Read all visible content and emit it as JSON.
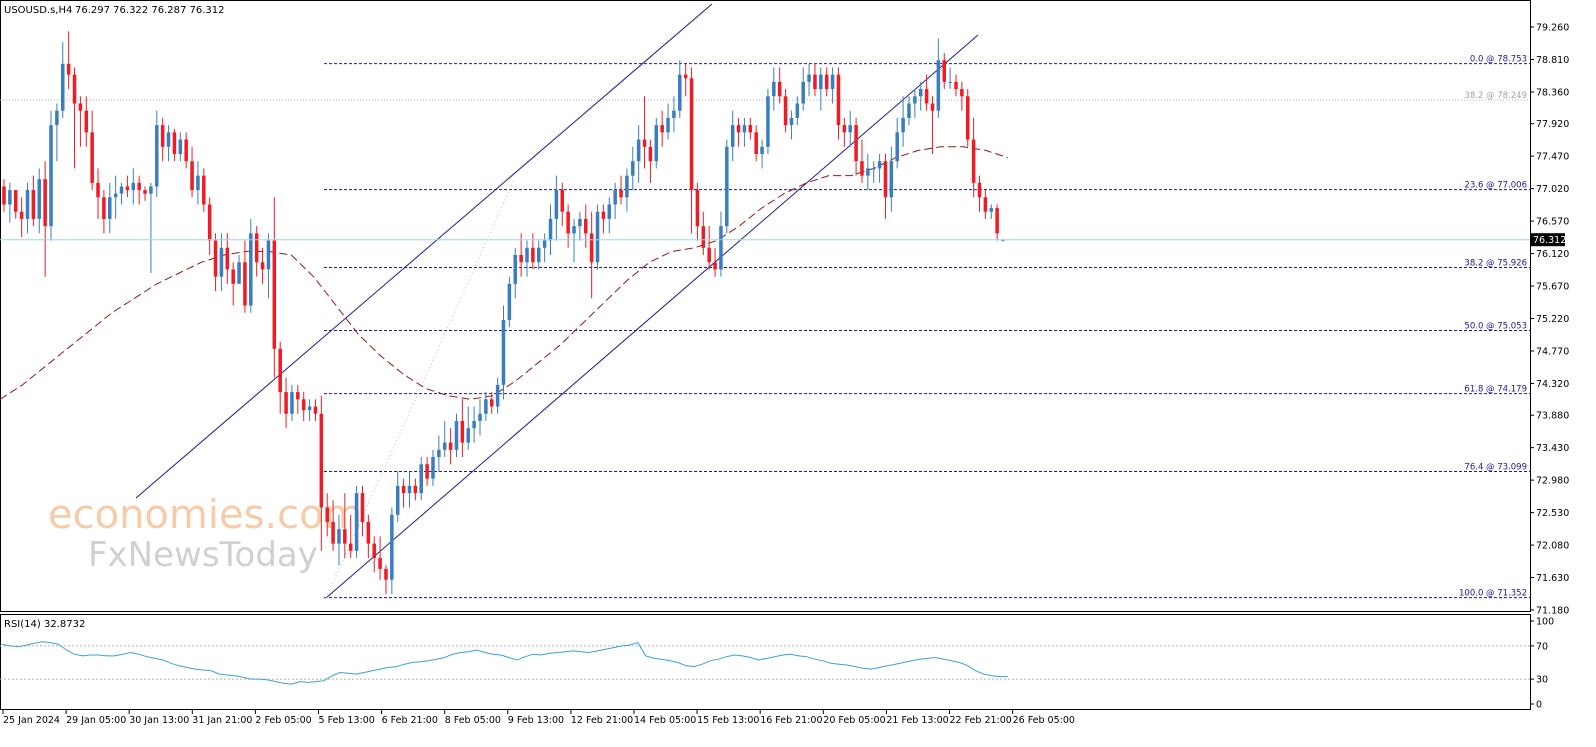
{
  "header": {
    "symbol": "USOUSD.s,H4",
    "ohlc": "76.297 76.322 76.287 76.312"
  },
  "price_axis": {
    "ticks": [
      "79.260",
      "78.810",
      "78.360",
      "77.920",
      "77.470",
      "77.020",
      "76.570",
      "76.120",
      "75.670",
      "75.220",
      "74.770",
      "74.320",
      "73.880",
      "73.430",
      "72.980",
      "72.530",
      "72.080",
      "71.630",
      "71.180"
    ],
    "current_price": "76.312"
  },
  "fib_levels": [
    {
      "label": "0.0 @ 78.753",
      "value": 78.753
    },
    {
      "label": "38.2 @ 78.249",
      "value": 78.249
    },
    {
      "label": "23.6 @ 77.006",
      "value": 77.006
    },
    {
      "label": "38.2 @ 75.926",
      "value": 75.926
    },
    {
      "label": "50.0 @ 75.053",
      "value": 75.053
    },
    {
      "label": "61.8 @ 74.179",
      "value": 74.179
    },
    {
      "label": "76.4 @ 73.099",
      "value": 73.099
    },
    {
      "label": "100.0 @ 71.352",
      "value": 71.352
    }
  ],
  "time_axis": [
    "25 Jan 2024",
    "29 Jan 05:00",
    "30 Jan 13:00",
    "31 Jan 21:00",
    "2 Feb 05:00",
    "5 Feb 13:00",
    "6 Feb 21:00",
    "8 Feb 05:00",
    "9 Feb 13:00",
    "12 Feb 21:00",
    "14 Feb 05:00",
    "15 Feb 13:00",
    "16 Feb 21:00",
    "20 Feb 05:00",
    "21 Feb 13:00",
    "22 Feb 21:00",
    "26 Feb 05:00"
  ],
  "rsi": {
    "label": "RSI(14) 32.8732",
    "ticks": [
      "100",
      "70",
      "30",
      "0"
    ],
    "levels": [
      70,
      30
    ]
  },
  "watermark": {
    "line1": "economies.com",
    "line2": "FxNewsToday"
  },
  "colors": {
    "bull": "#3b7ec0",
    "bear": "#ee1c24",
    "channel": "#1a1a8c",
    "ma": "#8b1a1a",
    "fib": "#1a1a8c",
    "rsi": "#3aa0e0"
  },
  "chart_data": {
    "type": "candlestick",
    "title": "USOUSD.s,H4",
    "ylim": [
      71.18,
      79.26
    ],
    "x_range": [
      "25 Jan 2024",
      "26 Feb 05:00"
    ],
    "candles_ohlc": [
      [
        77.05,
        77.15,
        76.7,
        76.8
      ],
      [
        76.8,
        77.1,
        76.55,
        77.0
      ],
      [
        77.0,
        77.0,
        76.6,
        76.7
      ],
      [
        76.7,
        76.9,
        76.35,
        76.6
      ],
      [
        76.6,
        77.1,
        76.4,
        77.0
      ],
      [
        77.0,
        77.2,
        76.5,
        76.6
      ],
      [
        76.6,
        77.3,
        76.4,
        77.15
      ],
      [
        77.15,
        77.4,
        75.8,
        76.5
      ],
      [
        76.5,
        78.1,
        76.3,
        77.9
      ],
      [
        77.9,
        78.2,
        77.4,
        78.1
      ],
      [
        78.1,
        79.05,
        78.0,
        78.75
      ],
      [
        78.75,
        79.2,
        78.4,
        78.6
      ],
      [
        78.6,
        78.7,
        77.3,
        78.2
      ],
      [
        78.2,
        78.3,
        77.6,
        78.1
      ],
      [
        78.1,
        78.3,
        77.6,
        77.8
      ],
      [
        77.8,
        78.1,
        77.0,
        77.1
      ],
      [
        77.1,
        77.3,
        76.6,
        76.9
      ],
      [
        76.9,
        77.0,
        76.4,
        76.6
      ],
      [
        76.6,
        77.1,
        76.4,
        76.9
      ],
      [
        76.9,
        77.2,
        76.6,
        76.95
      ],
      [
        76.95,
        77.1,
        76.8,
        77.05
      ],
      [
        77.05,
        77.2,
        76.9,
        77.0
      ],
      [
        77.0,
        77.3,
        76.8,
        77.1
      ],
      [
        77.1,
        77.2,
        76.8,
        77.0
      ],
      [
        77.0,
        77.05,
        76.85,
        76.95
      ],
      [
        76.95,
        77.1,
        75.85,
        77.05
      ],
      [
        77.05,
        78.1,
        76.9,
        77.9
      ],
      [
        77.9,
        78.0,
        77.4,
        77.6
      ],
      [
        77.6,
        77.9,
        77.4,
        77.8
      ],
      [
        77.8,
        77.85,
        77.4,
        77.5
      ],
      [
        77.5,
        77.8,
        77.4,
        77.7
      ],
      [
        77.7,
        77.8,
        77.3,
        77.4
      ],
      [
        77.4,
        77.6,
        76.9,
        77.0
      ],
      [
        77.0,
        77.4,
        76.8,
        77.2
      ],
      [
        77.2,
        77.3,
        76.7,
        76.8
      ],
      [
        76.8,
        76.9,
        76.1,
        76.3
      ],
      [
        76.3,
        76.4,
        75.6,
        75.8
      ],
      [
        75.8,
        76.4,
        75.6,
        76.2
      ],
      [
        76.2,
        76.4,
        75.7,
        75.9
      ],
      [
        75.9,
        76.0,
        75.4,
        75.7
      ],
      [
        75.7,
        76.1,
        75.7,
        76.0
      ],
      [
        76.0,
        76.3,
        75.3,
        75.4
      ],
      [
        75.4,
        76.6,
        75.3,
        76.4
      ],
      [
        76.4,
        76.5,
        75.8,
        76.0
      ],
      [
        76.0,
        76.2,
        75.7,
        75.9
      ],
      [
        75.9,
        76.4,
        75.5,
        76.3
      ],
      [
        76.3,
        76.9,
        74.4,
        74.8
      ],
      [
        74.8,
        74.9,
        73.9,
        74.2
      ],
      [
        74.2,
        74.4,
        73.7,
        73.9
      ],
      [
        73.9,
        74.3,
        73.8,
        74.2
      ],
      [
        74.2,
        74.3,
        73.9,
        74.1
      ],
      [
        74.1,
        74.2,
        73.8,
        73.95
      ],
      [
        73.95,
        74.1,
        73.8,
        74.0
      ],
      [
        74.0,
        74.1,
        73.8,
        73.9
      ],
      [
        73.9,
        74.15,
        72.0,
        72.6
      ],
      [
        72.6,
        72.8,
        72.2,
        72.4
      ],
      [
        72.4,
        72.7,
        72.0,
        72.1
      ],
      [
        72.1,
        72.5,
        71.8,
        72.3
      ],
      [
        72.3,
        72.8,
        71.9,
        72.1
      ],
      [
        72.1,
        72.5,
        71.9,
        72.0
      ],
      [
        72.0,
        72.9,
        71.9,
        72.8
      ],
      [
        72.8,
        72.9,
        72.2,
        72.4
      ],
      [
        72.4,
        72.5,
        71.9,
        72.1
      ],
      [
        72.1,
        72.2,
        71.7,
        71.9
      ],
      [
        71.9,
        72.2,
        71.6,
        71.75
      ],
      [
        71.75,
        71.8,
        71.4,
        71.6
      ],
      [
        71.6,
        72.6,
        71.4,
        72.5
      ],
      [
        72.5,
        73.1,
        72.4,
        72.9
      ],
      [
        72.9,
        73.0,
        72.6,
        72.8
      ],
      [
        72.8,
        73.1,
        72.6,
        72.9
      ],
      [
        72.9,
        73.0,
        72.7,
        72.8
      ],
      [
        72.8,
        73.3,
        72.7,
        73.2
      ],
      [
        73.2,
        73.3,
        72.9,
        73.0
      ],
      [
        73.0,
        73.4,
        72.9,
        73.3
      ],
      [
        73.3,
        73.6,
        73.1,
        73.4
      ],
      [
        73.4,
        73.8,
        73.3,
        73.5
      ],
      [
        73.5,
        73.7,
        73.2,
        73.4
      ],
      [
        73.4,
        73.9,
        73.3,
        73.8
      ],
      [
        73.8,
        74.1,
        73.3,
        73.5
      ],
      [
        73.5,
        74.0,
        73.4,
        73.7
      ],
      [
        73.7,
        74.0,
        73.5,
        73.8
      ],
      [
        73.8,
        74.1,
        73.6,
        73.9
      ],
      [
        73.9,
        74.2,
        73.8,
        74.1
      ],
      [
        74.1,
        74.2,
        73.9,
        74.0
      ],
      [
        74.0,
        74.4,
        73.9,
        74.3
      ],
      [
        74.3,
        75.4,
        74.1,
        75.2
      ],
      [
        75.2,
        75.8,
        75.1,
        75.7
      ],
      [
        75.7,
        76.2,
        75.5,
        76.1
      ],
      [
        76.1,
        76.4,
        75.8,
        76.0
      ],
      [
        76.0,
        76.3,
        75.8,
        76.2
      ],
      [
        76.2,
        76.4,
        75.9,
        76.0
      ],
      [
        76.0,
        76.3,
        75.9,
        76.2
      ],
      [
        76.2,
        76.4,
        76.0,
        76.3
      ],
      [
        76.3,
        76.8,
        76.1,
        76.6
      ],
      [
        76.6,
        77.2,
        76.3,
        77.0
      ],
      [
        77.0,
        77.1,
        76.5,
        76.7
      ],
      [
        76.7,
        76.8,
        76.2,
        76.4
      ],
      [
        76.4,
        76.6,
        76.0,
        76.5
      ],
      [
        76.5,
        76.7,
        76.3,
        76.6
      ],
      [
        76.6,
        76.8,
        76.2,
        76.4
      ],
      [
        76.4,
        76.7,
        75.5,
        76.0
      ],
      [
        76.0,
        76.8,
        75.9,
        76.7
      ],
      [
        76.7,
        76.8,
        76.4,
        76.6
      ],
      [
        76.6,
        76.9,
        76.4,
        76.8
      ],
      [
        76.8,
        77.1,
        76.6,
        77.0
      ],
      [
        77.0,
        77.2,
        76.8,
        76.9
      ],
      [
        76.9,
        77.3,
        76.7,
        77.2
      ],
      [
        77.2,
        77.6,
        77.0,
        77.4
      ],
      [
        77.4,
        77.9,
        77.1,
        77.7
      ],
      [
        77.7,
        78.3,
        77.3,
        77.6
      ],
      [
        77.6,
        77.7,
        77.1,
        77.4
      ],
      [
        77.4,
        78.0,
        77.3,
        77.9
      ],
      [
        77.9,
        78.1,
        77.6,
        77.8
      ],
      [
        77.8,
        78.2,
        77.7,
        78.0
      ],
      [
        78.0,
        78.3,
        77.8,
        78.1
      ],
      [
        78.1,
        78.8,
        78.0,
        78.6
      ],
      [
        78.6,
        78.75,
        78.3,
        78.55
      ],
      [
        78.55,
        78.7,
        76.4,
        77.0
      ],
      [
        77.0,
        77.1,
        76.3,
        76.5
      ],
      [
        76.5,
        76.7,
        76.1,
        76.2
      ],
      [
        76.2,
        76.5,
        75.9,
        76.0
      ],
      [
        76.0,
        76.2,
        75.8,
        75.9
      ],
      [
        75.9,
        76.7,
        75.8,
        76.5
      ],
      [
        76.5,
        77.7,
        76.4,
        77.6
      ],
      [
        77.6,
        78.1,
        77.4,
        77.9
      ],
      [
        77.9,
        78.0,
        77.6,
        77.8
      ],
      [
        77.8,
        78.0,
        77.6,
        77.9
      ],
      [
        77.9,
        78.0,
        77.7,
        77.8
      ],
      [
        77.8,
        77.9,
        77.4,
        77.5
      ],
      [
        77.5,
        77.7,
        77.3,
        77.6
      ],
      [
        77.6,
        78.4,
        77.5,
        78.3
      ],
      [
        78.3,
        78.7,
        78.1,
        78.5
      ],
      [
        78.5,
        78.7,
        78.2,
        78.3
      ],
      [
        78.3,
        78.4,
        77.8,
        77.9
      ],
      [
        77.9,
        78.1,
        77.7,
        78.0
      ],
      [
        78.0,
        78.3,
        77.9,
        78.2
      ],
      [
        78.2,
        78.7,
        78.1,
        78.5
      ],
      [
        78.5,
        78.75,
        78.3,
        78.6
      ],
      [
        78.6,
        78.75,
        78.3,
        78.4
      ],
      [
        78.4,
        78.7,
        78.1,
        78.6
      ],
      [
        78.6,
        78.7,
        78.3,
        78.4
      ],
      [
        78.4,
        78.7,
        78.2,
        78.6
      ],
      [
        78.6,
        78.7,
        77.7,
        77.9
      ],
      [
        77.9,
        78.0,
        77.6,
        77.8
      ],
      [
        77.8,
        78.1,
        77.6,
        77.9
      ],
      [
        77.9,
        78.0,
        77.2,
        77.4
      ],
      [
        77.4,
        77.7,
        77.1,
        77.2
      ],
      [
        77.2,
        77.5,
        77.0,
        77.3
      ],
      [
        77.3,
        77.4,
        77.1,
        77.3
      ],
      [
        77.3,
        77.5,
        77.1,
        77.4
      ],
      [
        77.4,
        77.5,
        76.6,
        76.9
      ],
      [
        76.9,
        77.6,
        76.7,
        77.4
      ],
      [
        77.4,
        78.0,
        77.3,
        77.8
      ],
      [
        77.8,
        78.3,
        77.6,
        78.0
      ],
      [
        78.0,
        78.3,
        77.9,
        78.2
      ],
      [
        78.2,
        78.4,
        78.0,
        78.3
      ],
      [
        78.3,
        78.5,
        78.1,
        78.4
      ],
      [
        78.4,
        78.6,
        78.1,
        78.2
      ],
      [
        78.2,
        78.3,
        77.5,
        78.1
      ],
      [
        78.1,
        79.1,
        78.0,
        78.8
      ],
      [
        78.8,
        78.9,
        78.4,
        78.5
      ],
      [
        78.5,
        78.7,
        78.4,
        78.5
      ],
      [
        78.5,
        78.6,
        78.3,
        78.4
      ],
      [
        78.4,
        78.5,
        78.1,
        78.3
      ],
      [
        78.3,
        78.4,
        77.6,
        77.7
      ],
      [
        77.7,
        78.0,
        76.9,
        77.1
      ],
      [
        77.1,
        77.2,
        76.7,
        76.9
      ],
      [
        76.9,
        77.0,
        76.6,
        76.7
      ],
      [
        76.7,
        76.8,
        76.6,
        76.75
      ],
      [
        76.75,
        76.8,
        76.3,
        76.4
      ],
      [
        76.297,
        76.322,
        76.287,
        76.312
      ]
    ],
    "moving_average": [
      74.1,
      74.3,
      74.55,
      74.8,
      75.05,
      75.3,
      75.5,
      75.7,
      75.85,
      76.0,
      76.1,
      76.15,
      76.15,
      76.1,
      75.8,
      75.4,
      75.0,
      74.7,
      74.45,
      74.25,
      74.15,
      74.1,
      74.15,
      74.35,
      74.6,
      74.85,
      75.15,
      75.45,
      75.75,
      76.0,
      76.15,
      76.2,
      76.3,
      76.5,
      76.75,
      76.95,
      77.1,
      77.2,
      77.2,
      77.3,
      77.45,
      77.55,
      77.6,
      77.6,
      77.55,
      77.45
    ],
    "fibonacci": [
      {
        "ratio": "0.0",
        "price": 78.753
      },
      {
        "ratio": "23.6",
        "price": 77.006
      },
      {
        "ratio": "38.2",
        "price": 75.926
      },
      {
        "ratio": "50.0",
        "price": 75.053
      },
      {
        "ratio": "61.8",
        "price": 74.179
      },
      {
        "ratio": "76.4",
        "price": 73.099
      },
      {
        "ratio": "100.0",
        "price": 71.352
      },
      {
        "ratio": "38.2",
        "price": 78.249
      }
    ],
    "rsi_values": [
      72,
      70,
      69,
      71,
      73,
      75,
      74,
      72,
      65,
      60,
      58,
      59,
      59,
      58,
      58,
      60,
      62,
      60,
      57,
      55,
      53,
      49,
      46,
      44,
      42,
      41,
      40,
      36,
      35,
      34,
      32,
      30,
      30,
      29,
      27,
      25,
      24,
      27,
      26,
      27,
      28,
      34,
      38,
      37,
      36,
      38,
      40,
      42,
      44,
      45,
      48,
      50,
      51,
      52,
      54,
      56,
      60,
      62,
      63,
      65,
      62,
      60,
      59,
      56,
      53,
      57,
      60,
      59,
      61,
      62,
      63,
      64,
      63,
      62,
      64,
      66,
      68,
      70,
      71,
      74,
      58,
      55,
      54,
      52,
      50,
      46,
      45,
      48,
      52,
      54,
      57,
      59,
      58,
      56,
      53,
      55,
      57,
      59,
      60,
      58,
      57,
      54,
      52,
      49,
      48,
      47,
      45,
      43,
      42,
      44,
      46,
      48,
      50,
      52,
      54,
      55,
      56,
      54,
      52,
      50,
      46,
      40,
      36,
      34,
      33,
      33
    ],
    "rsi_ylim": [
      0,
      100
    ]
  }
}
